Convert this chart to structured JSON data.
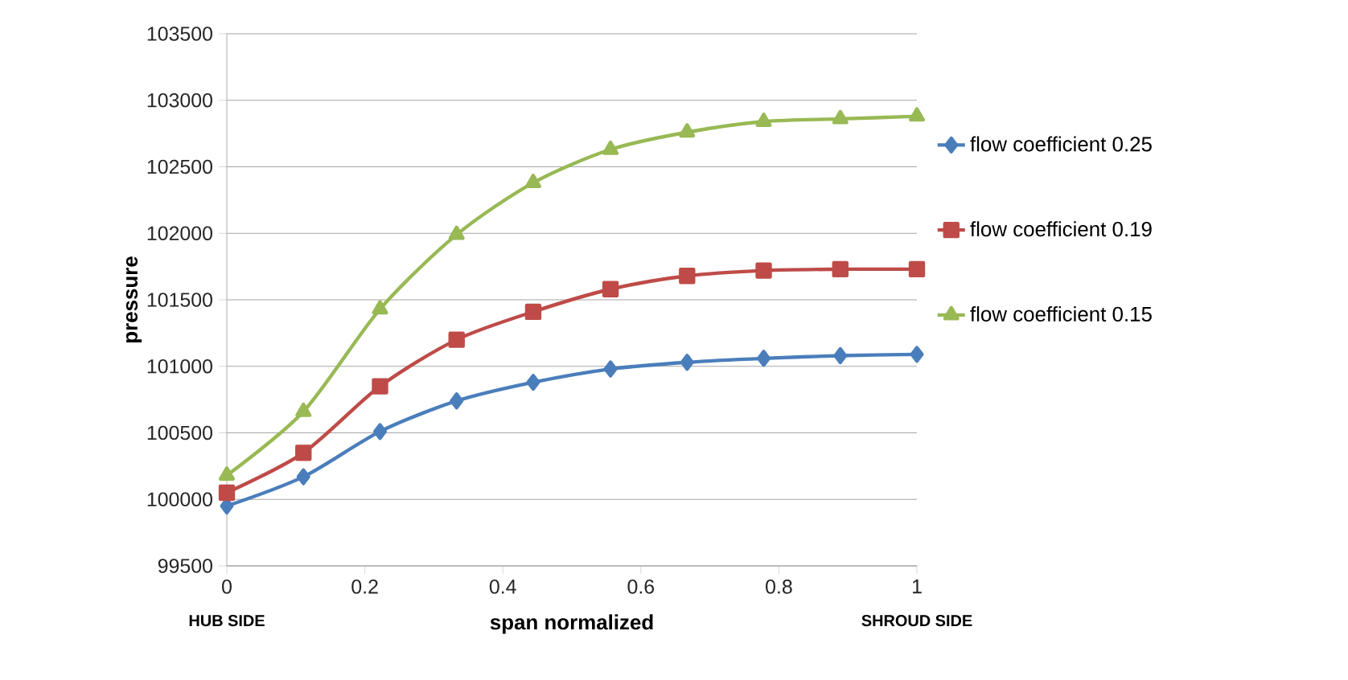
{
  "chart_data": {
    "type": "line",
    "xlabel": "span normalized",
    "ylabel": "pressure",
    "x": [
      0,
      0.111,
      0.222,
      0.333,
      0.444,
      0.556,
      0.667,
      0.778,
      0.889,
      1
    ],
    "series": [
      {
        "name": "flow coefficient  0.25",
        "color": "#4a7ebb",
        "marker": "diamond",
        "values": [
          99950,
          100170,
          100510,
          100740,
          100880,
          100980,
          101030,
          101060,
          101080,
          101090
        ]
      },
      {
        "name": "flow coefficient  0.19",
        "color": "#be4b48",
        "marker": "square",
        "values": [
          100050,
          100350,
          100850,
          101200,
          101410,
          101580,
          101680,
          101720,
          101730,
          101730
        ]
      },
      {
        "name": "flow coefficient  0.15",
        "color": "#98b954",
        "marker": "triangle",
        "values": [
          100180,
          100660,
          101430,
          101990,
          102380,
          102630,
          102760,
          102840,
          102860,
          102880
        ]
      }
    ],
    "xlim": [
      0,
      1
    ],
    "xticks": [
      0,
      0.2,
      0.4,
      0.6,
      0.8,
      1
    ],
    "ylim": [
      99500,
      103500
    ],
    "yticks": [
      99500,
      100000,
      100500,
      101000,
      101500,
      102000,
      102500,
      103000,
      103500
    ],
    "grid": "y",
    "legend": "right",
    "line_style": "solid",
    "annotations": [
      "HUB SIDE",
      "SHROUD SIDE"
    ]
  }
}
